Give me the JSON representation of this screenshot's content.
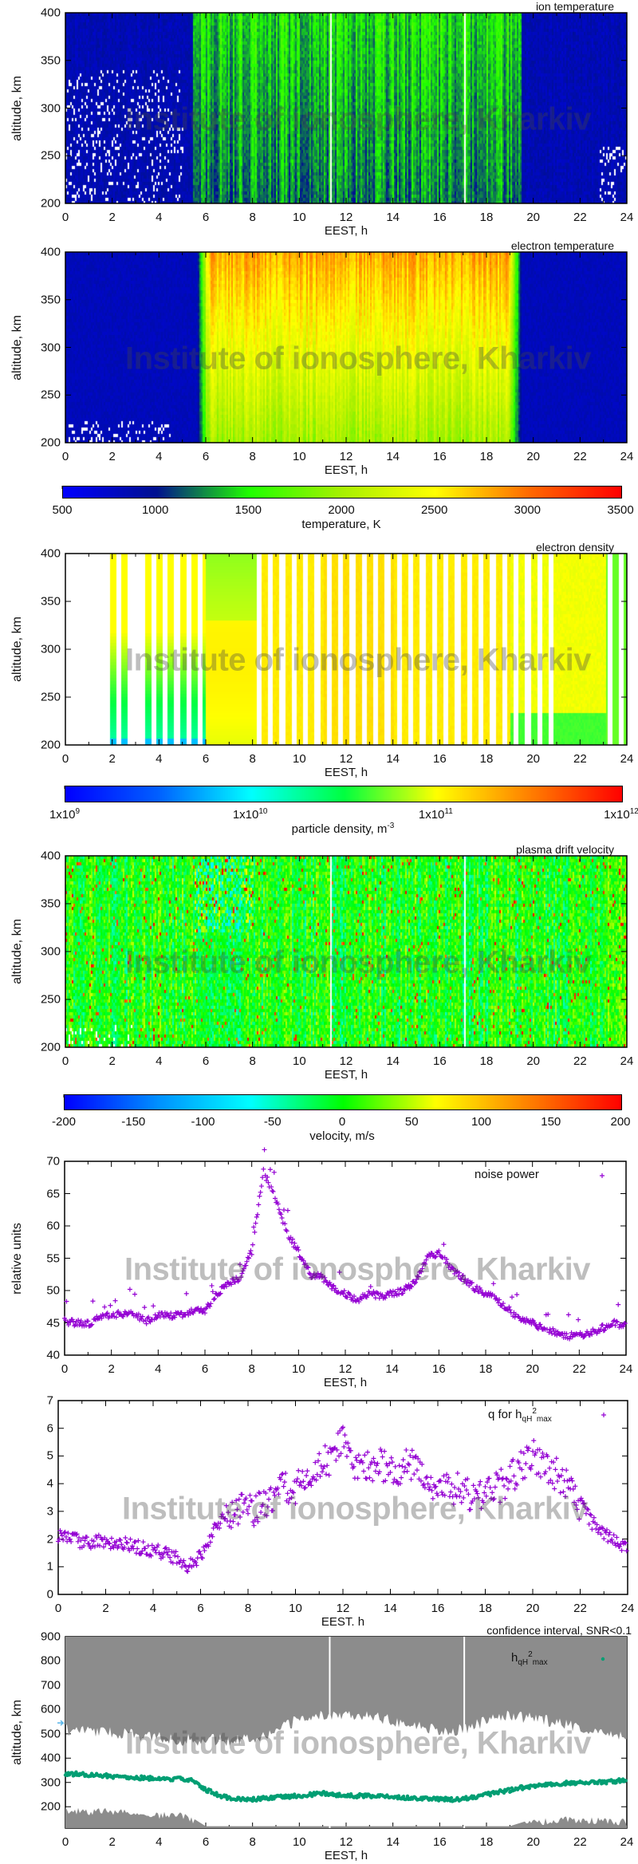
{
  "watermark": "Institute of ionosphere, Kharkiv",
  "chart_data": [
    {
      "type": "heatmap",
      "title": "ion temperature",
      "xlabel": "EEST, h",
      "ylabel": "altitude, km",
      "xlim": [
        0,
        24
      ],
      "ylim": [
        200,
        400
      ],
      "xticks": [
        "0",
        "2",
        "4",
        "6",
        "8",
        "10",
        "12",
        "14",
        "16",
        "18",
        "20",
        "22",
        "24"
      ],
      "yticks": [
        "200",
        "250",
        "300",
        "350",
        "400"
      ]
    },
    {
      "type": "heatmap",
      "title": "electron temperature",
      "xlabel": "EEST, h",
      "ylabel": "altitude, km",
      "xlim": [
        0,
        24
      ],
      "ylim": [
        200,
        400
      ],
      "xticks": [
        "0",
        "2",
        "4",
        "6",
        "8",
        "10",
        "12",
        "14",
        "16",
        "18",
        "20",
        "22",
        "24"
      ],
      "yticks": [
        "200",
        "250",
        "300",
        "350",
        "400"
      ],
      "colorbar": {
        "label": "temperature, K",
        "range": [
          500,
          3500
        ],
        "ticks": [
          "500",
          "1000",
          "1500",
          "2000",
          "2500",
          "3000",
          "3500"
        ],
        "colors": [
          "#0000ff",
          "#001090",
          "#20ff00",
          "#a8f000",
          "#ffff00",
          "#ff6a00",
          "#ff0000"
        ]
      }
    },
    {
      "type": "heatmap",
      "title": "electron density",
      "xlabel": "EEST, h",
      "ylabel": "altitude, km",
      "xlim": [
        0,
        24
      ],
      "ylim": [
        200,
        400
      ],
      "xticks": [
        "0",
        "2",
        "4",
        "6",
        "8",
        "10",
        "12",
        "14",
        "16",
        "18",
        "20",
        "22",
        "24"
      ],
      "yticks": [
        "200",
        "250",
        "300",
        "350",
        "400"
      ],
      "colorbar": {
        "label": "particle density, m",
        "label_sup": "-3",
        "scale": "log",
        "range": [
          1000000000.0,
          1000000000000.0
        ],
        "ticks": [
          {
            "base": "1x10",
            "exp": "9"
          },
          {
            "base": "1x10",
            "exp": "10"
          },
          {
            "base": "1x10",
            "exp": "11"
          },
          {
            "base": "1x10",
            "exp": "12"
          }
        ],
        "colors": [
          "#0000ff",
          "#0060ff",
          "#00ffff",
          "#00ff40",
          "#ffff00",
          "#ff8000",
          "#ff0000"
        ]
      }
    },
    {
      "type": "heatmap",
      "title": "plasma drift velocity",
      "xlabel": "EEST, h",
      "ylabel": "altitude, km",
      "xlim": [
        0,
        24
      ],
      "ylim": [
        200,
        400
      ],
      "xticks": [
        "0",
        "2",
        "4",
        "6",
        "8",
        "10",
        "12",
        "14",
        "16",
        "18",
        "20",
        "22",
        "24"
      ],
      "yticks": [
        "200",
        "250",
        "300",
        "350",
        "400"
      ],
      "colorbar": {
        "label": "velocity, m/s",
        "range": [
          -200,
          200
        ],
        "ticks": [
          "-200",
          "-150",
          "-100",
          "-50",
          "0",
          "50",
          "100",
          "150",
          "200"
        ],
        "colors": [
          "#0000ff",
          "#0090ff",
          "#00ffff",
          "#00ff00",
          "#ffff00",
          "#ff8000",
          "#ff0000"
        ]
      }
    },
    {
      "type": "scatter",
      "xlabel": "EEST, h",
      "ylabel": "relative units",
      "xlim": [
        0,
        24
      ],
      "ylim": [
        40,
        70
      ],
      "xticks": [
        "0",
        "2",
        "4",
        "6",
        "8",
        "10",
        "12",
        "14",
        "16",
        "18",
        "20",
        "22",
        "24"
      ],
      "yticks": [
        "40",
        "45",
        "50",
        "55",
        "60",
        "65",
        "70"
      ],
      "legend": "top-right",
      "series": [
        {
          "name": "noise power",
          "color": "#9400d3",
          "x": [
            0,
            0.5,
            1,
            1.5,
            2,
            2.5,
            3,
            3.5,
            4,
            4.5,
            5,
            5.5,
            6,
            6.5,
            7,
            7.5,
            8,
            8.5,
            9,
            9.5,
            10,
            10.5,
            11,
            11.5,
            12,
            12.5,
            13,
            13.5,
            14,
            14.5,
            15,
            15.5,
            16,
            16.5,
            17,
            17.5,
            18,
            18.5,
            19,
            19.5,
            20,
            20.5,
            21,
            21.5,
            22,
            22.5,
            23,
            23.5,
            24
          ],
          "y": [
            45.2,
            45.0,
            44.8,
            45.8,
            46.2,
            46.4,
            46.3,
            45.3,
            46.2,
            46.0,
            46.2,
            46.8,
            46.9,
            49.5,
            51,
            52,
            56,
            68.5,
            64.5,
            59,
            56,
            52.5,
            52,
            50.5,
            49.5,
            48.5,
            49.5,
            49.2,
            49.5,
            50,
            51.5,
            55,
            56,
            53.5,
            52,
            50.5,
            49.5,
            48.5,
            47,
            45.5,
            45,
            44,
            43.5,
            43,
            43,
            43.5,
            44.2,
            45,
            44.5
          ]
        }
      ]
    },
    {
      "type": "scatter",
      "xlabel": "EEST. h",
      "ylabel": "",
      "xlim": [
        0,
        24
      ],
      "ylim": [
        0,
        7
      ],
      "xticks": [
        "0",
        "2",
        "4",
        "6",
        "8",
        "10",
        "12",
        "14",
        "16",
        "18",
        "20",
        "22",
        "24"
      ],
      "yticks": [
        "0",
        "1",
        "2",
        "3",
        "4",
        "5",
        "6",
        "7"
      ],
      "legend": "top-right",
      "series": [
        {
          "name": "q for h",
          "name_sub": "qH",
          "name_sup": "2",
          "name_sub2": "max",
          "color": "#9400d3",
          "x": [
            0,
            0.5,
            1,
            1.5,
            2,
            2.5,
            3,
            3.5,
            4,
            4.5,
            5,
            5.5,
            6,
            6.5,
            7,
            7.5,
            8,
            8.5,
            9,
            9.5,
            10,
            10.5,
            11,
            11.5,
            12,
            12.5,
            13,
            13.5,
            14,
            14.5,
            15,
            15.5,
            16,
            16.5,
            17,
            17.5,
            18,
            18.5,
            19,
            19.5,
            20,
            20.5,
            21,
            21.5,
            22,
            22.5,
            23,
            23.5,
            24
          ],
          "y": [
            2.1,
            2.0,
            1.9,
            1.9,
            1.9,
            1.8,
            1.8,
            1.7,
            1.6,
            1.5,
            1.3,
            1.0,
            1.4,
            2.2,
            2.9,
            3.1,
            3.0,
            3.2,
            3.5,
            3.8,
            3.9,
            4.3,
            4.5,
            5.0,
            5.5,
            4.8,
            4.5,
            4.8,
            4.5,
            4.6,
            4.6,
            4.2,
            3.8,
            3.7,
            3.8,
            3.6,
            3.6,
            3.8,
            4.2,
            4.6,
            5.0,
            4.8,
            4.3,
            3.8,
            3.3,
            2.6,
            2.2,
            1.9,
            1.6
          ]
        }
      ]
    },
    {
      "type": "scatter",
      "title": "confidence interval, SNR<0.1",
      "xlabel": "EEST, h",
      "ylabel": "altitude, km",
      "xlim": [
        0,
        24
      ],
      "ylim": [
        112,
        900
      ],
      "xticks": [
        "0",
        "2",
        "4",
        "6",
        "8",
        "10",
        "12",
        "14",
        "16",
        "18",
        "20",
        "22",
        "24"
      ],
      "yticks": [
        "200",
        "300",
        "400",
        "500",
        "600",
        "700",
        "800",
        "900"
      ],
      "legend": "top-right",
      "confidence_interval": {
        "color": "#8c8c8c",
        "x": [
          0,
          1,
          2,
          3,
          4,
          5,
          6,
          7,
          8,
          9,
          10,
          11,
          12,
          13,
          14,
          15,
          16,
          17,
          18,
          19,
          20,
          21,
          22,
          23,
          24
        ],
        "upper_band_bottom": [
          540,
          540,
          530,
          520,
          510,
          500,
          500,
          500,
          510,
          530,
          590,
          600,
          610,
          600,
          580,
          560,
          540,
          540,
          580,
          600,
          590,
          570,
          550,
          530,
          510
        ],
        "lower_band_top": [
          200,
          195,
          195,
          190,
          180,
          180,
          120,
          120,
          120,
          120,
          120,
          120,
          120,
          120,
          120,
          120,
          120,
          120,
          120,
          120,
          150,
          160,
          160,
          155,
          150
        ]
      },
      "series": [
        {
          "name": "h",
          "name_sub": "qH",
          "name_sup": "2",
          "name_sub2": "max",
          "color": "#009e73",
          "x": [
            0,
            0.5,
            1,
            1.5,
            2,
            2.5,
            3,
            3.5,
            4,
            4.5,
            5,
            5.5,
            6,
            6.5,
            7,
            7.5,
            8,
            8.5,
            9,
            9.5,
            10,
            10.5,
            11,
            11.5,
            12,
            12.5,
            13,
            13.5,
            14,
            14.5,
            15,
            15.5,
            16,
            16.5,
            17,
            17.5,
            18,
            18.5,
            19,
            19.5,
            20,
            20.5,
            21,
            21.5,
            22,
            22.5,
            23,
            23.5,
            24
          ],
          "y": [
            335,
            335,
            330,
            330,
            325,
            325,
            320,
            318,
            315,
            312,
            315,
            305,
            270,
            250,
            235,
            230,
            230,
            235,
            238,
            242,
            245,
            250,
            255,
            250,
            245,
            245,
            245,
            242,
            240,
            238,
            232,
            232,
            232,
            230,
            232,
            240,
            250,
            260,
            268,
            278,
            285,
            290,
            295,
            298,
            298,
            300,
            300,
            305,
            310
          ]
        }
      ],
      "marker_arrow_color": "#56b4e9"
    }
  ]
}
